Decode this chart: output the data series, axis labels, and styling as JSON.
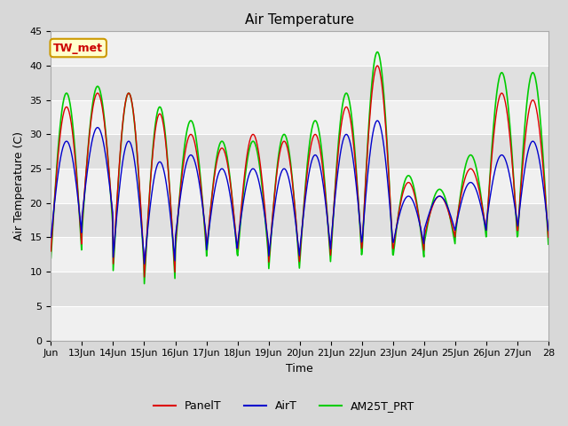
{
  "title": "Air Temperature",
  "ylabel": "Air Temperature (C)",
  "xlabel": "Time",
  "annotation_text": "TW_met",
  "annotation_bg": "#ffffcc",
  "annotation_border": "#cc9900",
  "annotation_text_color": "#cc0000",
  "ylim": [
    0,
    45
  ],
  "yticks": [
    0,
    5,
    10,
    15,
    20,
    25,
    30,
    35,
    40,
    45
  ],
  "line_colors": {
    "PanelT": "#dd0000",
    "AirT": "#0000cc",
    "AM25T_PRT": "#00cc00"
  },
  "line_widths": {
    "PanelT": 1.0,
    "AirT": 1.0,
    "AM25T_PRT": 1.2
  },
  "fig_bg_color": "#d8d8d8",
  "plot_bg_alt1": "#f0f0f0",
  "plot_bg_alt2": "#e0e0e0",
  "grid_color": "#ffffff",
  "num_points": 960,
  "x_start": 12,
  "x_end": 28,
  "xtick_positions": [
    12,
    13,
    14,
    15,
    16,
    17,
    18,
    19,
    20,
    21,
    22,
    23,
    24,
    25,
    26,
    27,
    28
  ],
  "xtick_labels": [
    "Jun",
    "13Jun",
    "14Jun",
    "15Jun",
    "16Jun",
    "17Jun",
    "18Jun",
    "19Jun",
    "20Jun",
    "21Jun",
    "22Jun",
    "23Jun",
    "24Jun",
    "25Jun",
    "26Jun",
    "27Jun",
    "28"
  ],
  "base_mins_panel": [
    13,
    17,
    11,
    9,
    14,
    13,
    13,
    11,
    12,
    13,
    13,
    13,
    15,
    16,
    16,
    15
  ],
  "amplitudes_panel": [
    21,
    19,
    25,
    24,
    16,
    15,
    17,
    18,
    18,
    21,
    27,
    10,
    6,
    9,
    20,
    20
  ],
  "base_mins_air": [
    15,
    18,
    12,
    11,
    15,
    13,
    14,
    12,
    13,
    14,
    14,
    14,
    16,
    16,
    17,
    16
  ],
  "amplitudes_air": [
    14,
    13,
    17,
    15,
    12,
    12,
    11,
    13,
    14,
    16,
    18,
    7,
    5,
    7,
    10,
    13
  ],
  "base_mins_am25": [
    12,
    16,
    10,
    8,
    13,
    12,
    12,
    10,
    11,
    12,
    12,
    12,
    14,
    15,
    15,
    14
  ],
  "amplitudes_am25": [
    24,
    21,
    26,
    26,
    19,
    17,
    17,
    20,
    21,
    24,
    30,
    12,
    8,
    12,
    24,
    25
  ],
  "legend_entries": [
    "PanelT",
    "AirT",
    "AM25T_PRT"
  ]
}
